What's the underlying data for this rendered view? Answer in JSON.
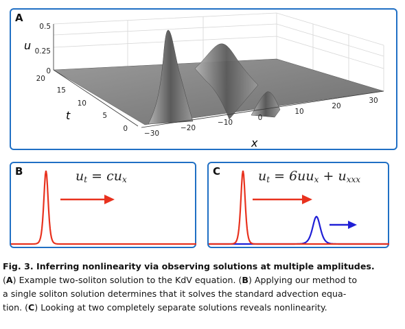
{
  "panel_a": {
    "letter": "A",
    "u_label": "u",
    "t_label": "t",
    "x_label": "x",
    "u_ticks": [
      "0.5",
      "0.25",
      "0"
    ],
    "t_ticks": [
      "20",
      "15",
      "10",
      "5",
      "0"
    ],
    "x_ticks": [
      "−30",
      "−20",
      "−10",
      "0",
      "10",
      "20",
      "30"
    ]
  },
  "panel_b": {
    "letter": "B",
    "equation": {
      "lhs": "u",
      "lhs_sub": "t",
      "eq": "=",
      "rhs": "cu",
      "rhs_sub": "x"
    }
  },
  "panel_c": {
    "letter": "C",
    "equation": {
      "lhs": "u",
      "lhs_sub": "t",
      "eq": "=",
      "rhs_1": "6uu",
      "rhs_1_sub": "x",
      "plus": "+",
      "rhs_2": "u",
      "rhs_2_sub": "xxx"
    }
  },
  "caption": {
    "head": "Fig. 3.  Inferring nonlinearity via observing solutions at multiple amplitudes.",
    "line1_pre": "(",
    "line1_a": "A",
    "line1_a_text": ") Example two-soliton solution to the KdV equation. (",
    "line1_b": "B",
    "line1_b_text": ") Applying our method to",
    "line2": "a single soliton solution determines that it solves the standard advection equa-",
    "line3_pre": "tion. (",
    "line3_c": "C",
    "line3_c_text": ") Looking at two completely separate solutions reveals nonlinearity."
  },
  "colors": {
    "frame": "#1f6fc4",
    "red": "#e8321e",
    "blue": "#1f1fd6",
    "surface": "#8a8a8a"
  }
}
